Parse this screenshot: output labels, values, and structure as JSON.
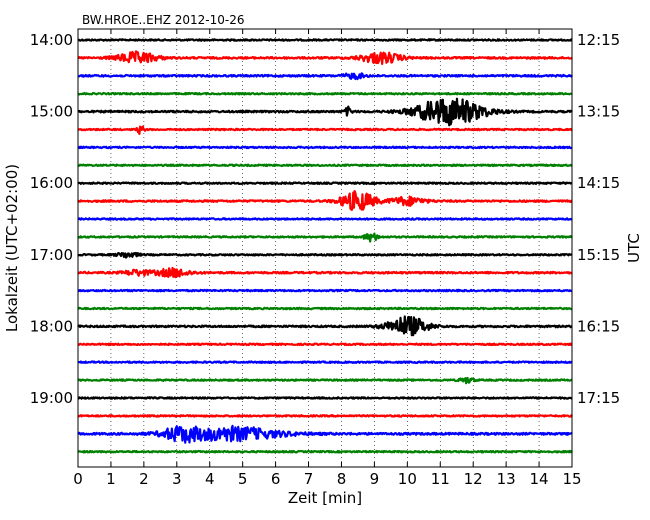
{
  "chart_data": {
    "type": "line",
    "title": "BW.HROE..EHZ 2012-10-26",
    "xlabel": "Zeit  [min]",
    "ylabel": "Lokalzeit (UTC+02:00)",
    "ylabel_right": "UTC",
    "xlim": [
      0,
      15
    ],
    "x_ticks": [
      "0",
      "1",
      "2",
      "3",
      "4",
      "5",
      "6",
      "7",
      "8",
      "9",
      "10",
      "11",
      "12",
      "13",
      "14",
      "15"
    ],
    "left_tick_labels": [
      "14:00",
      "15:00",
      "16:00",
      "17:00",
      "18:00",
      "19:00"
    ],
    "right_tick_labels": [
      "12:15",
      "13:15",
      "14:15",
      "15:15",
      "16:15",
      "17:15"
    ],
    "minutes_per_trace": 15,
    "traces_per_hour": 4,
    "grid": "vertical dotted",
    "colors": [
      "#000000",
      "#ff0000",
      "#0000ff",
      "#008000"
    ],
    "series": [
      {
        "start": "14:00",
        "color": "#000000",
        "noise": 0.5,
        "events": []
      },
      {
        "start": "14:15",
        "color": "#ff0000",
        "noise": 0.6,
        "events": [
          [
            1.8,
            4,
            0.6
          ],
          [
            9.2,
            4,
            0.6
          ]
        ]
      },
      {
        "start": "14:30",
        "color": "#0000ff",
        "noise": 0.6,
        "events": [
          [
            8.4,
            2,
            0.3
          ]
        ]
      },
      {
        "start": "14:45",
        "color": "#008000",
        "noise": 0.5,
        "events": []
      },
      {
        "start": "15:00",
        "color": "#000000",
        "noise": 0.6,
        "events": [
          [
            8.2,
            3,
            0.1
          ],
          [
            11.3,
            10,
            1.0
          ]
        ]
      },
      {
        "start": "15:15",
        "color": "#ff0000",
        "noise": 0.5,
        "events": [
          [
            1.9,
            3,
            0.1
          ]
        ]
      },
      {
        "start": "15:30",
        "color": "#0000ff",
        "noise": 0.5,
        "events": []
      },
      {
        "start": "15:45",
        "color": "#008000",
        "noise": 0.5,
        "events": []
      },
      {
        "start": "16:00",
        "color": "#000000",
        "noise": 0.5,
        "events": []
      },
      {
        "start": "16:15",
        "color": "#ff0000",
        "noise": 0.6,
        "events": [
          [
            8.5,
            7,
            0.5
          ],
          [
            10.0,
            3,
            0.5
          ]
        ]
      },
      {
        "start": "16:30",
        "color": "#0000ff",
        "noise": 0.5,
        "events": []
      },
      {
        "start": "16:45",
        "color": "#008000",
        "noise": 0.5,
        "events": [
          [
            8.9,
            3,
            0.2
          ]
        ]
      },
      {
        "start": "17:00",
        "color": "#000000",
        "noise": 0.5,
        "events": [
          [
            1.5,
            2,
            0.3
          ]
        ]
      },
      {
        "start": "17:15",
        "color": "#ff0000",
        "noise": 0.6,
        "events": [
          [
            2.9,
            3,
            0.5
          ],
          [
            1.8,
            2,
            0.4
          ]
        ]
      },
      {
        "start": "17:30",
        "color": "#0000ff",
        "noise": 0.5,
        "events": []
      },
      {
        "start": "17:45",
        "color": "#008000",
        "noise": 0.5,
        "events": []
      },
      {
        "start": "18:00",
        "color": "#000000",
        "noise": 0.6,
        "events": [
          [
            10.0,
            7,
            0.6
          ]
        ]
      },
      {
        "start": "18:15",
        "color": "#ff0000",
        "noise": 0.5,
        "events": []
      },
      {
        "start": "18:30",
        "color": "#0000ff",
        "noise": 0.5,
        "events": []
      },
      {
        "start": "18:45",
        "color": "#008000",
        "noise": 0.5,
        "events": [
          [
            11.8,
            2,
            0.2
          ]
        ]
      },
      {
        "start": "19:00",
        "color": "#000000",
        "noise": 0.5,
        "events": []
      },
      {
        "start": "19:15",
        "color": "#ff0000",
        "noise": 0.5,
        "events": []
      },
      {
        "start": "19:30",
        "color": "#0000ff",
        "noise": 0.7,
        "events": [
          [
            3.1,
            4,
            0.5
          ],
          [
            4.6,
            5,
            1.5
          ]
        ]
      },
      {
        "start": "19:45",
        "color": "#008000",
        "noise": 0.5,
        "events": []
      }
    ]
  }
}
